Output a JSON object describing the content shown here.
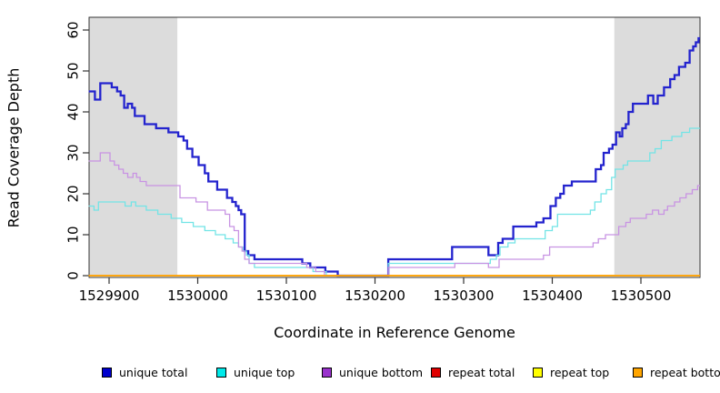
{
  "chart_data": {
    "type": "line",
    "subtype": "step",
    "title": "",
    "xlabel": "Coordinate in Reference Genome",
    "ylabel": "Read Coverage Depth",
    "xlim": [
      1529877,
      1530567
    ],
    "ylim": [
      0,
      60
    ],
    "x_ticks": [
      1529900,
      1530000,
      1530100,
      1530200,
      1530300,
      1530400,
      1530500
    ],
    "y_ticks": [
      0,
      10,
      20,
      30,
      40,
      50,
      60
    ],
    "grid": "off",
    "legend_position": "bottom",
    "shade_color": "#dcdcdc",
    "shaded_regions": [
      {
        "x0": 1529877,
        "x1": 1529977
      },
      {
        "x0": 1530470,
        "x1": 1530567
      }
    ],
    "series": [
      {
        "name": "unique total",
        "color": "#2323ce",
        "legend_fill": "#0000cd",
        "width": 2.3,
        "points": [
          [
            1529877,
            45
          ],
          [
            1529884,
            43
          ],
          [
            1529890,
            47
          ],
          [
            1529903,
            46
          ],
          [
            1529909,
            45
          ],
          [
            1529913,
            44
          ],
          [
            1529917,
            41
          ],
          [
            1529921,
            42
          ],
          [
            1529926,
            41
          ],
          [
            1529929,
            39
          ],
          [
            1529940,
            37
          ],
          [
            1529953,
            36
          ],
          [
            1529967,
            35
          ],
          [
            1529978,
            34
          ],
          [
            1529984,
            33
          ],
          [
            1529988,
            31
          ],
          [
            1529994,
            29
          ],
          [
            1530001,
            27
          ],
          [
            1530008,
            25
          ],
          [
            1530012,
            23
          ],
          [
            1530022,
            21
          ],
          [
            1530033,
            19
          ],
          [
            1530039,
            18
          ],
          [
            1530043,
            17
          ],
          [
            1530046,
            16
          ],
          [
            1530049,
            15
          ],
          [
            1530053,
            6
          ],
          [
            1530057,
            5
          ],
          [
            1530064,
            4
          ],
          [
            1530118,
            3
          ],
          [
            1530127,
            2
          ],
          [
            1530144,
            1
          ],
          [
            1530158,
            0
          ],
          [
            1530215,
            4
          ],
          [
            1530287,
            7
          ],
          [
            1530328,
            5
          ],
          [
            1530339,
            8
          ],
          [
            1530344,
            9
          ],
          [
            1530356,
            12
          ],
          [
            1530382,
            13
          ],
          [
            1530390,
            14
          ],
          [
            1530398,
            17
          ],
          [
            1530404,
            19
          ],
          [
            1530409,
            20
          ],
          [
            1530413,
            22
          ],
          [
            1530422,
            23
          ],
          [
            1530449,
            26
          ],
          [
            1530455,
            27
          ],
          [
            1530458,
            30
          ],
          [
            1530464,
            31
          ],
          [
            1530468,
            32
          ],
          [
            1530472,
            35
          ],
          [
            1530476,
            34
          ],
          [
            1530479,
            36
          ],
          [
            1530483,
            37
          ],
          [
            1530486,
            40
          ],
          [
            1530491,
            42
          ],
          [
            1530508,
            44
          ],
          [
            1530514,
            42
          ],
          [
            1530519,
            44
          ],
          [
            1530526,
            46
          ],
          [
            1530533,
            48
          ],
          [
            1530538,
            49
          ],
          [
            1530543,
            51
          ],
          [
            1530550,
            52
          ],
          [
            1530555,
            55
          ],
          [
            1530559,
            56
          ],
          [
            1530562,
            57
          ],
          [
            1530565,
            58
          ]
        ]
      },
      {
        "name": "unique top",
        "color": "#72e4e6",
        "legend_fill": "#00e9e9",
        "width": 1.3,
        "points": [
          [
            1529877,
            17
          ],
          [
            1529883,
            16
          ],
          [
            1529888,
            18
          ],
          [
            1529918,
            17
          ],
          [
            1529925,
            18
          ],
          [
            1529930,
            17
          ],
          [
            1529942,
            16
          ],
          [
            1529955,
            15
          ],
          [
            1529970,
            14
          ],
          [
            1529982,
            13
          ],
          [
            1529995,
            12
          ],
          [
            1530008,
            11
          ],
          [
            1530020,
            10
          ],
          [
            1530031,
            9
          ],
          [
            1530040,
            8
          ],
          [
            1530046,
            7
          ],
          [
            1530051,
            6
          ],
          [
            1530055,
            5
          ],
          [
            1530058,
            3
          ],
          [
            1530064,
            2
          ],
          [
            1530130,
            1
          ],
          [
            1530145,
            0
          ],
          [
            1530215,
            3
          ],
          [
            1530330,
            4
          ],
          [
            1530337,
            5
          ],
          [
            1530341,
            7
          ],
          [
            1530350,
            8
          ],
          [
            1530358,
            9
          ],
          [
            1530392,
            11
          ],
          [
            1530400,
            12
          ],
          [
            1530406,
            15
          ],
          [
            1530443,
            16
          ],
          [
            1530448,
            18
          ],
          [
            1530455,
            20
          ],
          [
            1530461,
            21
          ],
          [
            1530467,
            24
          ],
          [
            1530471,
            26
          ],
          [
            1530480,
            27
          ],
          [
            1530485,
            28
          ],
          [
            1530510,
            30
          ],
          [
            1530516,
            31
          ],
          [
            1530523,
            33
          ],
          [
            1530535,
            34
          ],
          [
            1530546,
            35
          ],
          [
            1530555,
            36
          ]
        ]
      },
      {
        "name": "unique bottom",
        "color": "#c893e3",
        "legend_fill": "#9932cc",
        "width": 1.3,
        "points": [
          [
            1529877,
            28
          ],
          [
            1529890,
            30
          ],
          [
            1529901,
            28
          ],
          [
            1529906,
            27
          ],
          [
            1529911,
            26
          ],
          [
            1529916,
            25
          ],
          [
            1529921,
            24
          ],
          [
            1529927,
            25
          ],
          [
            1529931,
            24
          ],
          [
            1529935,
            23
          ],
          [
            1529942,
            22
          ],
          [
            1529980,
            19
          ],
          [
            1529998,
            18
          ],
          [
            1530011,
            16
          ],
          [
            1530031,
            15
          ],
          [
            1530036,
            12
          ],
          [
            1530041,
            11
          ],
          [
            1530046,
            7
          ],
          [
            1530050,
            6
          ],
          [
            1530053,
            4
          ],
          [
            1530058,
            3
          ],
          [
            1530123,
            2
          ],
          [
            1530133,
            1
          ],
          [
            1530143,
            0
          ],
          [
            1530215,
            2
          ],
          [
            1530290,
            3
          ],
          [
            1530328,
            2
          ],
          [
            1530340,
            4
          ],
          [
            1530390,
            5
          ],
          [
            1530397,
            7
          ],
          [
            1530446,
            8
          ],
          [
            1530452,
            9
          ],
          [
            1530460,
            10
          ],
          [
            1530475,
            12
          ],
          [
            1530483,
            13
          ],
          [
            1530488,
            14
          ],
          [
            1530506,
            15
          ],
          [
            1530513,
            16
          ],
          [
            1530520,
            15
          ],
          [
            1530526,
            16
          ],
          [
            1530530,
            17
          ],
          [
            1530538,
            18
          ],
          [
            1530544,
            19
          ],
          [
            1530551,
            20
          ],
          [
            1530558,
            21
          ],
          [
            1530564,
            22
          ]
        ]
      },
      {
        "name": "repeat total",
        "color": "#cc0000",
        "legend_fill": "#e00000",
        "width": 1.3,
        "points": [
          [
            1529877,
            0
          ]
        ]
      },
      {
        "name": "repeat top",
        "color": "#ffff00",
        "legend_fill": "#ffff00",
        "width": 1.3,
        "points": [
          [
            1529877,
            0
          ]
        ]
      },
      {
        "name": "repeat bottom",
        "color": "#ffa200",
        "legend_fill": "#ffa500",
        "width": 1.8,
        "points": [
          [
            1529877,
            0
          ]
        ]
      }
    ]
  }
}
